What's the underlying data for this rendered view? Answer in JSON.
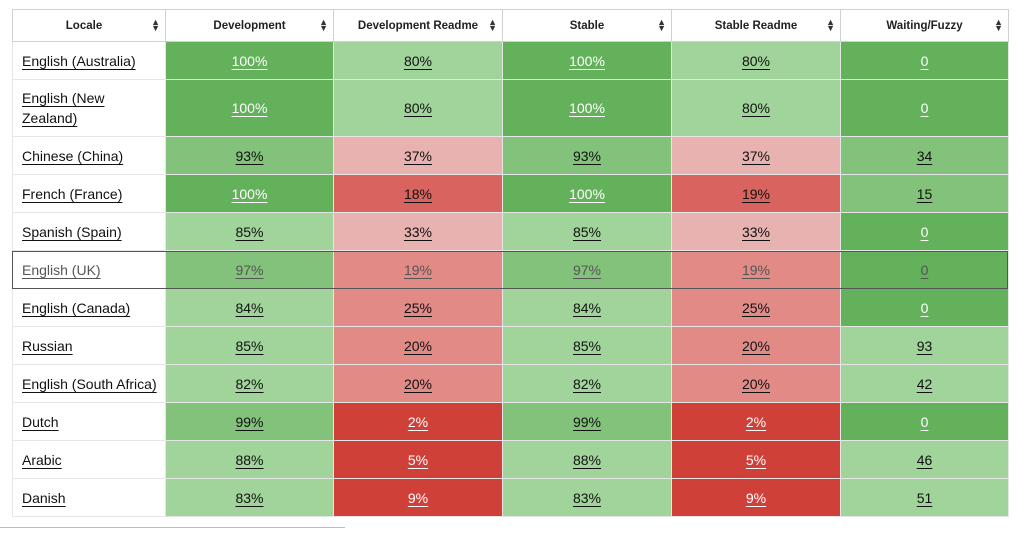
{
  "columns": [
    "Locale",
    "Development",
    "Development Readme",
    "Stable",
    "Stable Readme",
    "Waiting/Fuzzy"
  ],
  "sort_icon": "sort-arrows-icon",
  "colors": {
    "green_dark": "#64b15c",
    "green_mid": "#82c27a",
    "green_light": "#a0d49a",
    "red_light": "#e8b2b0",
    "red_mid": "#e28a86",
    "red_strong": "#d9645f",
    "red_dark": "#cf4039"
  },
  "rows": [
    {
      "locale": "English (Australia)",
      "dev": "100%",
      "dev_readme": "80%",
      "stable": "100%",
      "stable_readme": "80%",
      "waiting": "0",
      "c": [
        "green_dark",
        "green_light",
        "green_dark",
        "green_light",
        "green_dark"
      ]
    },
    {
      "locale": "English (New Zealand)",
      "dev": "100%",
      "dev_readme": "80%",
      "stable": "100%",
      "stable_readme": "80%",
      "waiting": "0",
      "c": [
        "green_dark",
        "green_light",
        "green_dark",
        "green_light",
        "green_dark"
      ]
    },
    {
      "locale": "Chinese (China)",
      "dev": "93%",
      "dev_readme": "37%",
      "stable": "93%",
      "stable_readme": "37%",
      "waiting": "34",
      "c": [
        "green_mid",
        "red_light",
        "green_mid",
        "red_light",
        "green_mid"
      ]
    },
    {
      "locale": "French (France)",
      "dev": "100%",
      "dev_readme": "18%",
      "stable": "100%",
      "stable_readme": "19%",
      "waiting": "15",
      "c": [
        "green_dark",
        "red_strong",
        "green_dark",
        "red_strong",
        "green_mid"
      ]
    },
    {
      "locale": "Spanish (Spain)",
      "dev": "85%",
      "dev_readme": "33%",
      "stable": "85%",
      "stable_readme": "33%",
      "waiting": "0",
      "c": [
        "green_light",
        "red_light",
        "green_light",
        "red_light",
        "green_dark"
      ]
    },
    {
      "locale": "English (UK)",
      "dev": "97%",
      "dev_readme": "19%",
      "stable": "97%",
      "stable_readme": "19%",
      "waiting": "0",
      "c": [
        "green_mid",
        "red_mid",
        "green_mid",
        "red_mid",
        "green_dark"
      ]
    },
    {
      "locale": "English (Canada)",
      "dev": "84%",
      "dev_readme": "25%",
      "stable": "84%",
      "stable_readme": "25%",
      "waiting": "0",
      "c": [
        "green_light",
        "red_mid",
        "green_light",
        "red_mid",
        "green_dark"
      ]
    },
    {
      "locale": "Russian",
      "dev": "85%",
      "dev_readme": "20%",
      "stable": "85%",
      "stable_readme": "20%",
      "waiting": "93",
      "c": [
        "green_light",
        "red_mid",
        "green_light",
        "red_mid",
        "green_light"
      ]
    },
    {
      "locale": "English (South Africa)",
      "dev": "82%",
      "dev_readme": "20%",
      "stable": "82%",
      "stable_readme": "20%",
      "waiting": "42",
      "c": [
        "green_light",
        "red_mid",
        "green_light",
        "red_mid",
        "green_light"
      ]
    },
    {
      "locale": "Dutch",
      "dev": "99%",
      "dev_readme": "2%",
      "stable": "99%",
      "stable_readme": "2%",
      "waiting": "0",
      "c": [
        "green_mid",
        "red_dark",
        "green_mid",
        "red_dark",
        "green_dark"
      ]
    },
    {
      "locale": "Arabic",
      "dev": "88%",
      "dev_readme": "5%",
      "stable": "88%",
      "stable_readme": "5%",
      "waiting": "46",
      "c": [
        "green_light",
        "red_dark",
        "green_light",
        "red_dark",
        "green_light"
      ]
    },
    {
      "locale": "Danish",
      "dev": "83%",
      "dev_readme": "9%",
      "stable": "83%",
      "stable_readme": "9%",
      "waiting": "51",
      "c": [
        "green_light",
        "red_dark",
        "green_light",
        "red_dark",
        "green_light"
      ]
    }
  ],
  "selected_row": 5
}
